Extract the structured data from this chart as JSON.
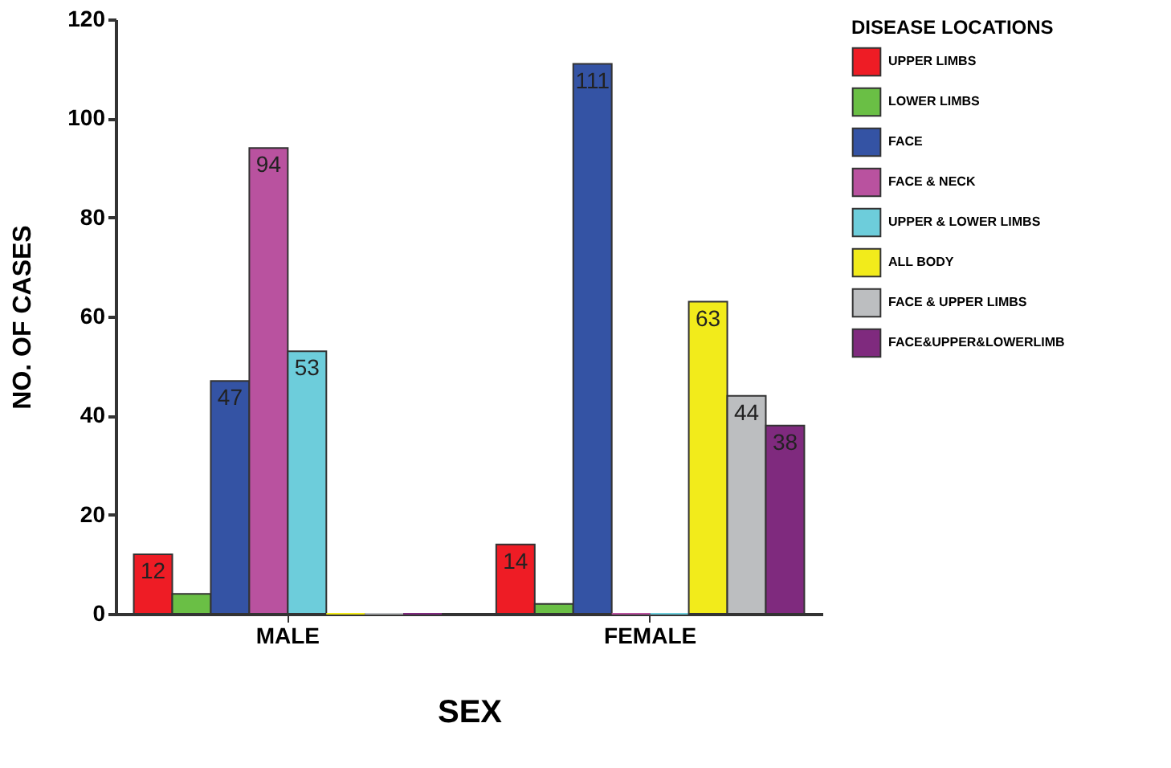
{
  "chart_data": {
    "type": "bar",
    "xlabel": "SEX",
    "ylabel": "NO. OF CASES",
    "legend_title": "DISEASE LOCATIONS",
    "legend": "right",
    "grid": false,
    "categories": [
      "MALE",
      "FEMALE"
    ],
    "ylim": [
      0,
      120
    ],
    "yticks": [
      0,
      20,
      40,
      60,
      80,
      100,
      120
    ],
    "series": [
      {
        "name": "UPPER LIMBS",
        "color": "#ee1c25",
        "values": [
          12,
          14
        ],
        "value_labels": [
          "12",
          "14"
        ]
      },
      {
        "name": "LOWER LIMBS",
        "color": "#6abf45",
        "values": [
          4,
          2
        ],
        "value_labels": [
          null,
          null
        ]
      },
      {
        "name": "FACE",
        "color": "#3453a4",
        "values": [
          47,
          111
        ],
        "value_labels": [
          "47",
          "111"
        ]
      },
      {
        "name": "FACE & NECK",
        "color": "#b9529f",
        "values": [
          94,
          0
        ],
        "value_labels": [
          "94",
          null
        ]
      },
      {
        "name": "UPPER & LOWER LIMBS",
        "color": "#6dcddb",
        "values": [
          53,
          0
        ],
        "value_labels": [
          "53",
          null
        ]
      },
      {
        "name": "ALL BODY",
        "color": "#f2eb1b",
        "values": [
          0,
          63
        ],
        "value_labels": [
          null,
          "63"
        ]
      },
      {
        "name": "FACE & UPPER LIMBS",
        "color": "#bcbec0",
        "values": [
          0,
          44
        ],
        "value_labels": [
          null,
          "44"
        ]
      },
      {
        "name": "FACE&UPPER&LOWERLIMB",
        "color": "#7f2a7e",
        "values": [
          0,
          38
        ],
        "value_labels": [
          null,
          "38"
        ]
      }
    ]
  }
}
